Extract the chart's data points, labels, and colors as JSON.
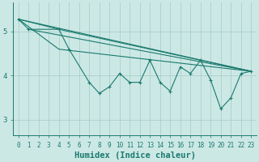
{
  "xlabel": "Humidex (Indice chaleur)",
  "xlim": [
    -0.5,
    23.5
  ],
  "ylim": [
    2.65,
    5.65
  ],
  "yticks": [
    3,
    4,
    5
  ],
  "xticks": [
    0,
    1,
    2,
    3,
    4,
    5,
    6,
    7,
    8,
    9,
    10,
    11,
    12,
    13,
    14,
    15,
    16,
    17,
    18,
    19,
    20,
    21,
    22,
    23
  ],
  "bg_color": "#cce8e5",
  "grid_color": "#aacfcc",
  "line_color": "#1a7a6e",
  "zigzag": {
    "x": [
      0,
      1,
      4,
      5,
      7,
      8,
      9,
      10,
      11,
      12,
      13,
      14,
      15,
      16,
      17,
      18,
      19,
      20,
      21,
      22,
      23
    ],
    "y": [
      5.28,
      5.05,
      5.05,
      4.6,
      3.85,
      3.6,
      3.75,
      4.05,
      3.85,
      3.85,
      4.35,
      3.85,
      3.65,
      4.2,
      4.05,
      4.35,
      3.9,
      3.25,
      3.5,
      4.05,
      4.1
    ]
  },
  "fan_lines": [
    {
      "x": [
        0,
        23
      ],
      "y": [
        5.28,
        4.1
      ]
    },
    {
      "x": [
        0,
        4,
        23
      ],
      "y": [
        5.28,
        5.05,
        4.1
      ]
    },
    {
      "x": [
        1,
        23
      ],
      "y": [
        5.05,
        4.1
      ]
    },
    {
      "x": [
        0,
        4,
        23
      ],
      "y": [
        5.28,
        4.6,
        4.1
      ]
    }
  ],
  "font_family": "monospace",
  "tick_fontsize": 5.5,
  "label_fontsize": 7.5
}
